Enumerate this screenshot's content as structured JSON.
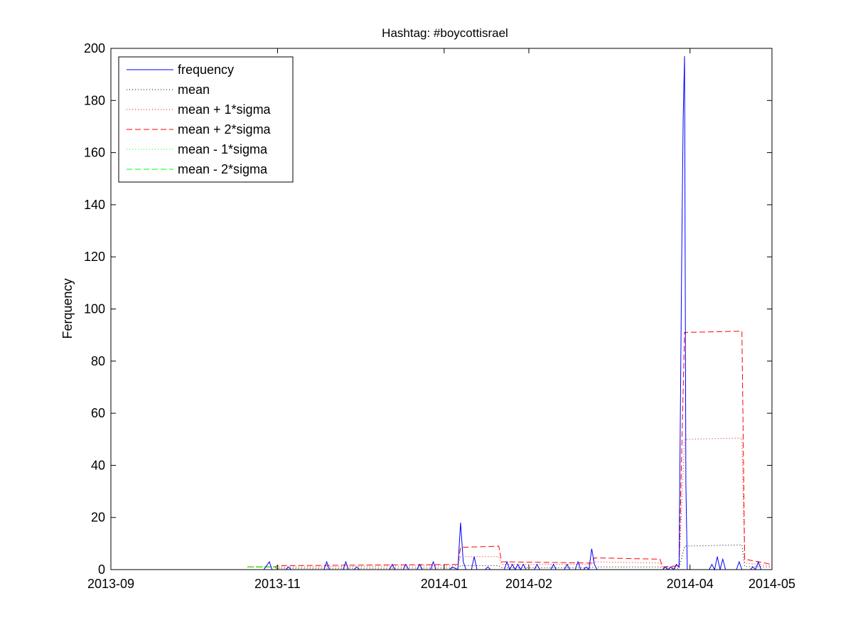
{
  "chart_data": {
    "type": "line",
    "title": "Hashtag: #boycottisrael",
    "xlabel": "",
    "ylabel": "Ferquency",
    "xlim": [
      "2013-09-01",
      "2014-05-01"
    ],
    "ylim": [
      0,
      200
    ],
    "x_ticks": [
      "2013-09-01",
      "2013-11-01",
      "2014-01-01",
      "2014-02-01",
      "2014-04-01",
      "2014-05-01"
    ],
    "x_tick_labels": [
      "2013-09",
      "2013-11",
      "2014-01",
      "2014-02",
      "2014-04",
      "2014-05"
    ],
    "y_ticks": [
      0,
      20,
      40,
      60,
      80,
      100,
      120,
      140,
      160,
      180,
      200
    ],
    "grid": false,
    "legend_position": "top-left",
    "colors": {
      "blue": "#0000ff",
      "black": "#000000",
      "red": "#ff0000",
      "green": "#00ff00"
    },
    "series": [
      {
        "name": "frequency",
        "color": "#0000ff",
        "style": "solid",
        "points": [
          [
            "2013-10-20",
            0
          ],
          [
            "2013-10-27",
            0
          ],
          [
            "2013-10-29",
            3
          ],
          [
            "2013-10-30",
            0
          ],
          [
            "2013-11-04",
            0
          ],
          [
            "2013-11-05",
            1
          ],
          [
            "2013-11-06",
            0
          ],
          [
            "2013-11-18",
            0
          ],
          [
            "2013-11-19",
            3
          ],
          [
            "2013-11-20",
            0
          ],
          [
            "2013-11-25",
            0
          ],
          [
            "2013-11-26",
            3
          ],
          [
            "2013-11-27",
            0
          ],
          [
            "2013-11-29",
            0
          ],
          [
            "2013-11-30",
            1
          ],
          [
            "2013-12-01",
            0
          ],
          [
            "2013-12-12",
            0
          ],
          [
            "2013-12-13",
            2
          ],
          [
            "2013-12-14",
            0
          ],
          [
            "2013-12-17",
            0
          ],
          [
            "2013-12-18",
            2
          ],
          [
            "2013-12-19",
            0
          ],
          [
            "2013-12-22",
            0
          ],
          [
            "2013-12-23",
            2
          ],
          [
            "2013-12-24",
            0
          ],
          [
            "2013-12-27",
            0
          ],
          [
            "2013-12-28",
            3
          ],
          [
            "2013-12-29",
            0
          ],
          [
            "2014-01-03",
            0
          ],
          [
            "2014-01-04",
            1
          ],
          [
            "2014-01-06",
            0
          ],
          [
            "2014-01-07",
            18
          ],
          [
            "2014-01-08",
            3
          ],
          [
            "2014-01-09",
            0
          ],
          [
            "2014-01-11",
            0
          ],
          [
            "2014-01-12",
            5
          ],
          [
            "2014-01-13",
            0
          ],
          [
            "2014-01-16",
            0
          ],
          [
            "2014-01-17",
            1
          ],
          [
            "2014-01-18",
            0
          ],
          [
            "2014-01-23",
            0
          ],
          [
            "2014-01-24",
            3
          ],
          [
            "2014-01-25",
            0
          ],
          [
            "2014-01-26",
            2
          ],
          [
            "2014-01-27",
            0
          ],
          [
            "2014-01-28",
            2
          ],
          [
            "2014-01-29",
            0
          ],
          [
            "2014-01-30",
            2
          ],
          [
            "2014-01-31",
            0
          ],
          [
            "2014-02-03",
            0
          ],
          [
            "2014-02-04",
            2
          ],
          [
            "2014-02-05",
            0
          ],
          [
            "2014-02-09",
            0
          ],
          [
            "2014-02-10",
            2
          ],
          [
            "2014-02-11",
            0
          ],
          [
            "2014-02-14",
            0
          ],
          [
            "2014-02-15",
            2
          ],
          [
            "2014-02-16",
            0
          ],
          [
            "2014-02-18",
            0
          ],
          [
            "2014-02-19",
            3
          ],
          [
            "2014-02-20",
            0
          ],
          [
            "2014-02-21",
            0
          ],
          [
            "2014-02-22",
            1
          ],
          [
            "2014-02-23",
            0
          ],
          [
            "2014-02-24",
            8
          ],
          [
            "2014-02-25",
            2
          ],
          [
            "2014-02-26",
            0
          ],
          [
            "2014-03-22",
            0
          ],
          [
            "2014-03-23",
            1
          ],
          [
            "2014-03-24",
            0
          ],
          [
            "2014-03-25",
            1
          ],
          [
            "2014-03-26",
            0
          ],
          [
            "2014-03-27",
            2
          ],
          [
            "2014-03-28",
            1
          ],
          [
            "2014-03-29",
            125
          ],
          [
            "2014-03-29T12:00",
            173
          ],
          [
            "2014-03-30",
            197
          ],
          [
            "2014-03-30T12:00",
            33
          ],
          [
            "2014-03-31",
            0
          ],
          [
            "2014-04-08",
            0
          ],
          [
            "2014-04-09",
            2
          ],
          [
            "2014-04-10",
            0
          ],
          [
            "2014-04-11",
            5
          ],
          [
            "2014-04-12",
            0
          ],
          [
            "2014-04-13",
            4
          ],
          [
            "2014-04-14",
            0
          ],
          [
            "2014-04-18",
            0
          ],
          [
            "2014-04-19",
            3
          ],
          [
            "2014-04-20",
            0
          ],
          [
            "2014-04-23",
            0
          ],
          [
            "2014-04-24",
            1
          ],
          [
            "2014-04-25",
            0
          ],
          [
            "2014-04-26",
            3
          ],
          [
            "2014-04-27",
            0
          ],
          [
            "2014-04-30",
            0
          ],
          [
            "2014-05-01",
            0
          ]
        ]
      },
      {
        "name": "mean",
        "color": "#000000",
        "style": "dotted",
        "points": [
          [
            "2013-10-21",
            1
          ],
          [
            "2013-10-31",
            1
          ],
          [
            "2013-11-01",
            0.5
          ],
          [
            "2014-01-06",
            0.6
          ],
          [
            "2014-01-07",
            1.5
          ],
          [
            "2014-01-21",
            1.5
          ],
          [
            "2014-01-22",
            0.7
          ],
          [
            "2014-02-24",
            0.8
          ],
          [
            "2014-02-25",
            1
          ],
          [
            "2014-03-21",
            1
          ],
          [
            "2014-03-22",
            0.5
          ],
          [
            "2014-03-28",
            0.5
          ],
          [
            "2014-03-30",
            9
          ],
          [
            "2014-04-20",
            9.5
          ],
          [
            "2014-04-21",
            1.2
          ],
          [
            "2014-05-01",
            1
          ]
        ]
      },
      {
        "name": "mean + 1*sigma",
        "color": "#ff0000",
        "style": "dotted",
        "points": [
          [
            "2013-10-21",
            1
          ],
          [
            "2013-10-31",
            1
          ],
          [
            "2013-11-01",
            1
          ],
          [
            "2014-01-06",
            1.5
          ],
          [
            "2014-01-07",
            5
          ],
          [
            "2014-01-21",
            5
          ],
          [
            "2014-01-22",
            2
          ],
          [
            "2014-02-24",
            2
          ],
          [
            "2014-02-25",
            3
          ],
          [
            "2014-03-21",
            2.5
          ],
          [
            "2014-03-22",
            0.8
          ],
          [
            "2014-03-28",
            1
          ],
          [
            "2014-03-30",
            50
          ],
          [
            "2014-04-20",
            50.5
          ],
          [
            "2014-04-21",
            2.5
          ],
          [
            "2014-05-01",
            1.5
          ]
        ]
      },
      {
        "name": "mean + 2*sigma",
        "color": "#ff0000",
        "style": "dashed",
        "points": [
          [
            "2013-10-21",
            1
          ],
          [
            "2013-10-31",
            1
          ],
          [
            "2013-11-01",
            1.5
          ],
          [
            "2014-01-06",
            2
          ],
          [
            "2014-01-07",
            8.5
          ],
          [
            "2014-01-21",
            9
          ],
          [
            "2014-01-22",
            3
          ],
          [
            "2014-02-24",
            2.5
          ],
          [
            "2014-02-25",
            4.5
          ],
          [
            "2014-03-21",
            4
          ],
          [
            "2014-03-22",
            1
          ],
          [
            "2014-03-28",
            1.5
          ],
          [
            "2014-03-30",
            91
          ],
          [
            "2014-04-20",
            91.5
          ],
          [
            "2014-04-21",
            4
          ],
          [
            "2014-05-01",
            2
          ]
        ]
      },
      {
        "name": "mean - 1*sigma",
        "color": "#00ff00",
        "style": "dotted",
        "points": [
          [
            "2013-10-21",
            1
          ],
          [
            "2013-10-31",
            1
          ],
          [
            "2013-11-01",
            0
          ]
        ]
      },
      {
        "name": "mean - 2*sigma",
        "color": "#00ff00",
        "style": "dashed",
        "points": [
          [
            "2013-10-21",
            1
          ],
          [
            "2013-10-31",
            1
          ],
          [
            "2013-11-01",
            0
          ]
        ]
      }
    ]
  }
}
